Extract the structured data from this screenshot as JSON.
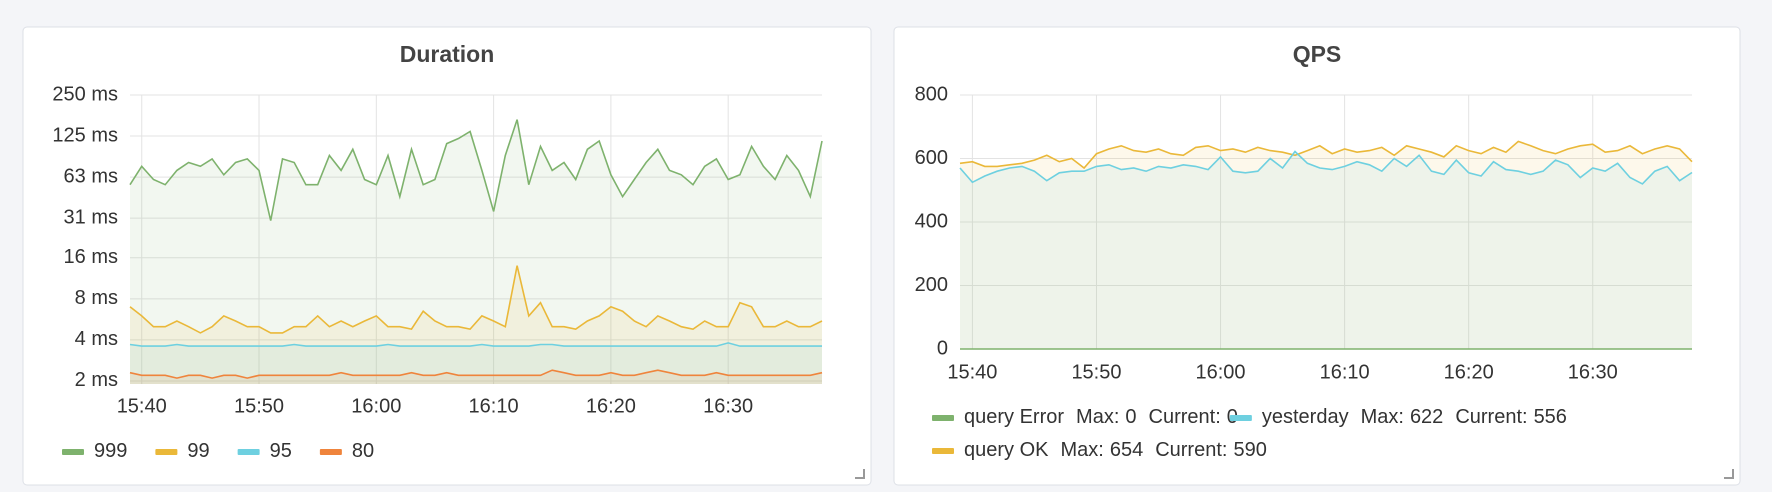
{
  "charts": [
    {
      "type": "line",
      "title": "Duration",
      "log_scale": true,
      "grid": true,
      "fill_area": true,
      "legend_position": "bottom-left",
      "x": [
        "15:39",
        "15:40",
        "15:41",
        "15:42",
        "15:43",
        "15:44",
        "15:45",
        "15:46",
        "15:47",
        "15:48",
        "15:49",
        "15:50",
        "15:51",
        "15:52",
        "15:53",
        "15:54",
        "15:55",
        "15:56",
        "15:57",
        "15:58",
        "15:59",
        "16:00",
        "16:01",
        "16:02",
        "16:03",
        "16:04",
        "16:05",
        "16:06",
        "16:07",
        "16:08",
        "16:09",
        "16:10",
        "16:11",
        "16:12",
        "16:13",
        "16:14",
        "16:15",
        "16:16",
        "16:17",
        "16:18",
        "16:19",
        "16:20",
        "16:21",
        "16:22",
        "16:23",
        "16:24",
        "16:25",
        "16:26",
        "16:27",
        "16:28",
        "16:29",
        "16:30",
        "16:31",
        "16:32",
        "16:33",
        "16:34",
        "16:35",
        "16:36",
        "16:37",
        "16:38"
      ],
      "xlim": [
        "15:39",
        "16:38"
      ],
      "xticks": [
        "15:40",
        "15:50",
        "16:00",
        "16:10",
        "16:20",
        "16:30"
      ],
      "ylim": [
        1.9,
        250
      ],
      "yticks": [
        {
          "value": 2,
          "label": "2 ms"
        },
        {
          "value": 4,
          "label": "4 ms"
        },
        {
          "value": 8,
          "label": "8 ms"
        },
        {
          "value": 16,
          "label": "16 ms"
        },
        {
          "value": 31.25,
          "label": "31 ms"
        },
        {
          "value": 62.5,
          "label": "63 ms"
        },
        {
          "value": 125,
          "label": "125 ms"
        },
        {
          "value": 250,
          "label": "250 ms"
        }
      ],
      "series": [
        {
          "name": "999",
          "color": "#7eb26d",
          "values": [
            55,
            75,
            60,
            55,
            70,
            80,
            75,
            85,
            65,
            80,
            85,
            70,
            30,
            85,
            80,
            55,
            55,
            90,
            70,
            100,
            60,
            55,
            90,
            45,
            100,
            55,
            60,
            110,
            120,
            135,
            70,
            35,
            90,
            165,
            55,
            105,
            70,
            80,
            60,
            100,
            115,
            65,
            45,
            60,
            80,
            100,
            70,
            65,
            55,
            75,
            85,
            60,
            65,
            105,
            75,
            60,
            90,
            70,
            45,
            115
          ]
        },
        {
          "name": "99",
          "color": "#eab839",
          "values": [
            7,
            6,
            5,
            5,
            5.5,
            5,
            4.5,
            5,
            6,
            5.5,
            5,
            5,
            4.5,
            4.5,
            5,
            5,
            6,
            5,
            5.5,
            5,
            5.5,
            6,
            5,
            5,
            4.8,
            6.5,
            5.5,
            5,
            5,
            4.8,
            6,
            5.5,
            5,
            14,
            6,
            7.5,
            5,
            5,
            4.8,
            5.5,
            6,
            7,
            6.5,
            5.5,
            5,
            6,
            5.5,
            5,
            4.8,
            5.5,
            5,
            5,
            7.5,
            7,
            5,
            5,
            5.5,
            5,
            5,
            5.5
          ]
        },
        {
          "name": "95",
          "color": "#6ed0e0",
          "values": [
            3.7,
            3.6,
            3.6,
            3.6,
            3.7,
            3.6,
            3.6,
            3.6,
            3.6,
            3.6,
            3.6,
            3.6,
            3.6,
            3.6,
            3.7,
            3.6,
            3.6,
            3.6,
            3.6,
            3.6,
            3.6,
            3.6,
            3.7,
            3.6,
            3.6,
            3.6,
            3.6,
            3.6,
            3.6,
            3.6,
            3.7,
            3.6,
            3.6,
            3.6,
            3.6,
            3.7,
            3.7,
            3.6,
            3.6,
            3.6,
            3.6,
            3.6,
            3.6,
            3.6,
            3.6,
            3.6,
            3.6,
            3.6,
            3.6,
            3.6,
            3.6,
            3.8,
            3.6,
            3.6,
            3.6,
            3.6,
            3.6,
            3.6,
            3.6,
            3.6
          ]
        },
        {
          "name": "80",
          "color": "#ef843c",
          "values": [
            2.3,
            2.2,
            2.2,
            2.2,
            2.1,
            2.2,
            2.2,
            2.1,
            2.2,
            2.2,
            2.1,
            2.2,
            2.2,
            2.2,
            2.2,
            2.2,
            2.2,
            2.2,
            2.3,
            2.2,
            2.2,
            2.2,
            2.2,
            2.2,
            2.3,
            2.2,
            2.2,
            2.3,
            2.2,
            2.2,
            2.2,
            2.2,
            2.2,
            2.2,
            2.2,
            2.2,
            2.4,
            2.3,
            2.2,
            2.2,
            2.2,
            2.3,
            2.2,
            2.2,
            2.3,
            2.4,
            2.3,
            2.2,
            2.2,
            2.2,
            2.3,
            2.2,
            2.2,
            2.2,
            2.2,
            2.2,
            2.2,
            2.2,
            2.2,
            2.3
          ]
        }
      ]
    },
    {
      "type": "line",
      "title": "QPS",
      "log_scale": false,
      "grid": true,
      "fill_area": true,
      "legend_position": "bottom-left",
      "legend_labels": {
        "max": "Max:",
        "current": "Current:"
      },
      "x": [
        "15:39",
        "15:40",
        "15:41",
        "15:42",
        "15:43",
        "15:44",
        "15:45",
        "15:46",
        "15:47",
        "15:48",
        "15:49",
        "15:50",
        "15:51",
        "15:52",
        "15:53",
        "15:54",
        "15:55",
        "15:56",
        "15:57",
        "15:58",
        "15:59",
        "16:00",
        "16:01",
        "16:02",
        "16:03",
        "16:04",
        "16:05",
        "16:06",
        "16:07",
        "16:08",
        "16:09",
        "16:10",
        "16:11",
        "16:12",
        "16:13",
        "16:14",
        "16:15",
        "16:16",
        "16:17",
        "16:18",
        "16:19",
        "16:20",
        "16:21",
        "16:22",
        "16:23",
        "16:24",
        "16:25",
        "16:26",
        "16:27",
        "16:28",
        "16:29",
        "16:30",
        "16:31",
        "16:32",
        "16:33",
        "16:34",
        "16:35",
        "16:36",
        "16:37",
        "16:38"
      ],
      "xlim": [
        "15:39",
        "16:38"
      ],
      "xticks": [
        "15:40",
        "15:50",
        "16:00",
        "16:10",
        "16:20",
        "16:30"
      ],
      "ylim": [
        0,
        800
      ],
      "yticks": [
        0,
        200,
        400,
        600,
        800
      ],
      "series": [
        {
          "name": "query OK",
          "color": "#eab839",
          "max": 654,
          "current": 590,
          "legend_order": 2,
          "values": [
            585,
            590,
            575,
            575,
            580,
            585,
            595,
            610,
            590,
            600,
            570,
            615,
            630,
            640,
            625,
            620,
            630,
            615,
            610,
            635,
            640,
            625,
            630,
            620,
            635,
            625,
            620,
            610,
            625,
            640,
            615,
            630,
            620,
            625,
            635,
            610,
            640,
            630,
            620,
            605,
            640,
            625,
            615,
            635,
            620,
            654,
            640,
            625,
            615,
            630,
            640,
            645,
            620,
            625,
            640,
            615,
            630,
            640,
            630,
            590
          ]
        },
        {
          "name": "yesterday",
          "color": "#6ed0e0",
          "max": 622,
          "current": 556,
          "legend_order": 1,
          "values": [
            570,
            525,
            545,
            560,
            570,
            575,
            560,
            530,
            555,
            560,
            560,
            575,
            580,
            565,
            570,
            560,
            575,
            570,
            580,
            575,
            565,
            605,
            560,
            555,
            560,
            600,
            570,
            622,
            585,
            570,
            565,
            575,
            590,
            580,
            560,
            600,
            575,
            610,
            560,
            550,
            595,
            555,
            545,
            590,
            565,
            560,
            550,
            560,
            595,
            580,
            540,
            570,
            560,
            585,
            540,
            520,
            560,
            575,
            530,
            556
          ]
        },
        {
          "name": "query Error",
          "color": "#7eb26d",
          "max": 0,
          "current": 0,
          "legend_order": 0,
          "values": [
            0,
            0,
            0,
            0,
            0,
            0,
            0,
            0,
            0,
            0,
            0,
            0,
            0,
            0,
            0,
            0,
            0,
            0,
            0,
            0,
            0,
            0,
            0,
            0,
            0,
            0,
            0,
            0,
            0,
            0,
            0,
            0,
            0,
            0,
            0,
            0,
            0,
            0,
            0,
            0,
            0,
            0,
            0,
            0,
            0,
            0,
            0,
            0,
            0,
            0,
            0,
            0,
            0,
            0,
            0,
            0,
            0,
            0,
            0,
            0
          ]
        }
      ]
    }
  ]
}
